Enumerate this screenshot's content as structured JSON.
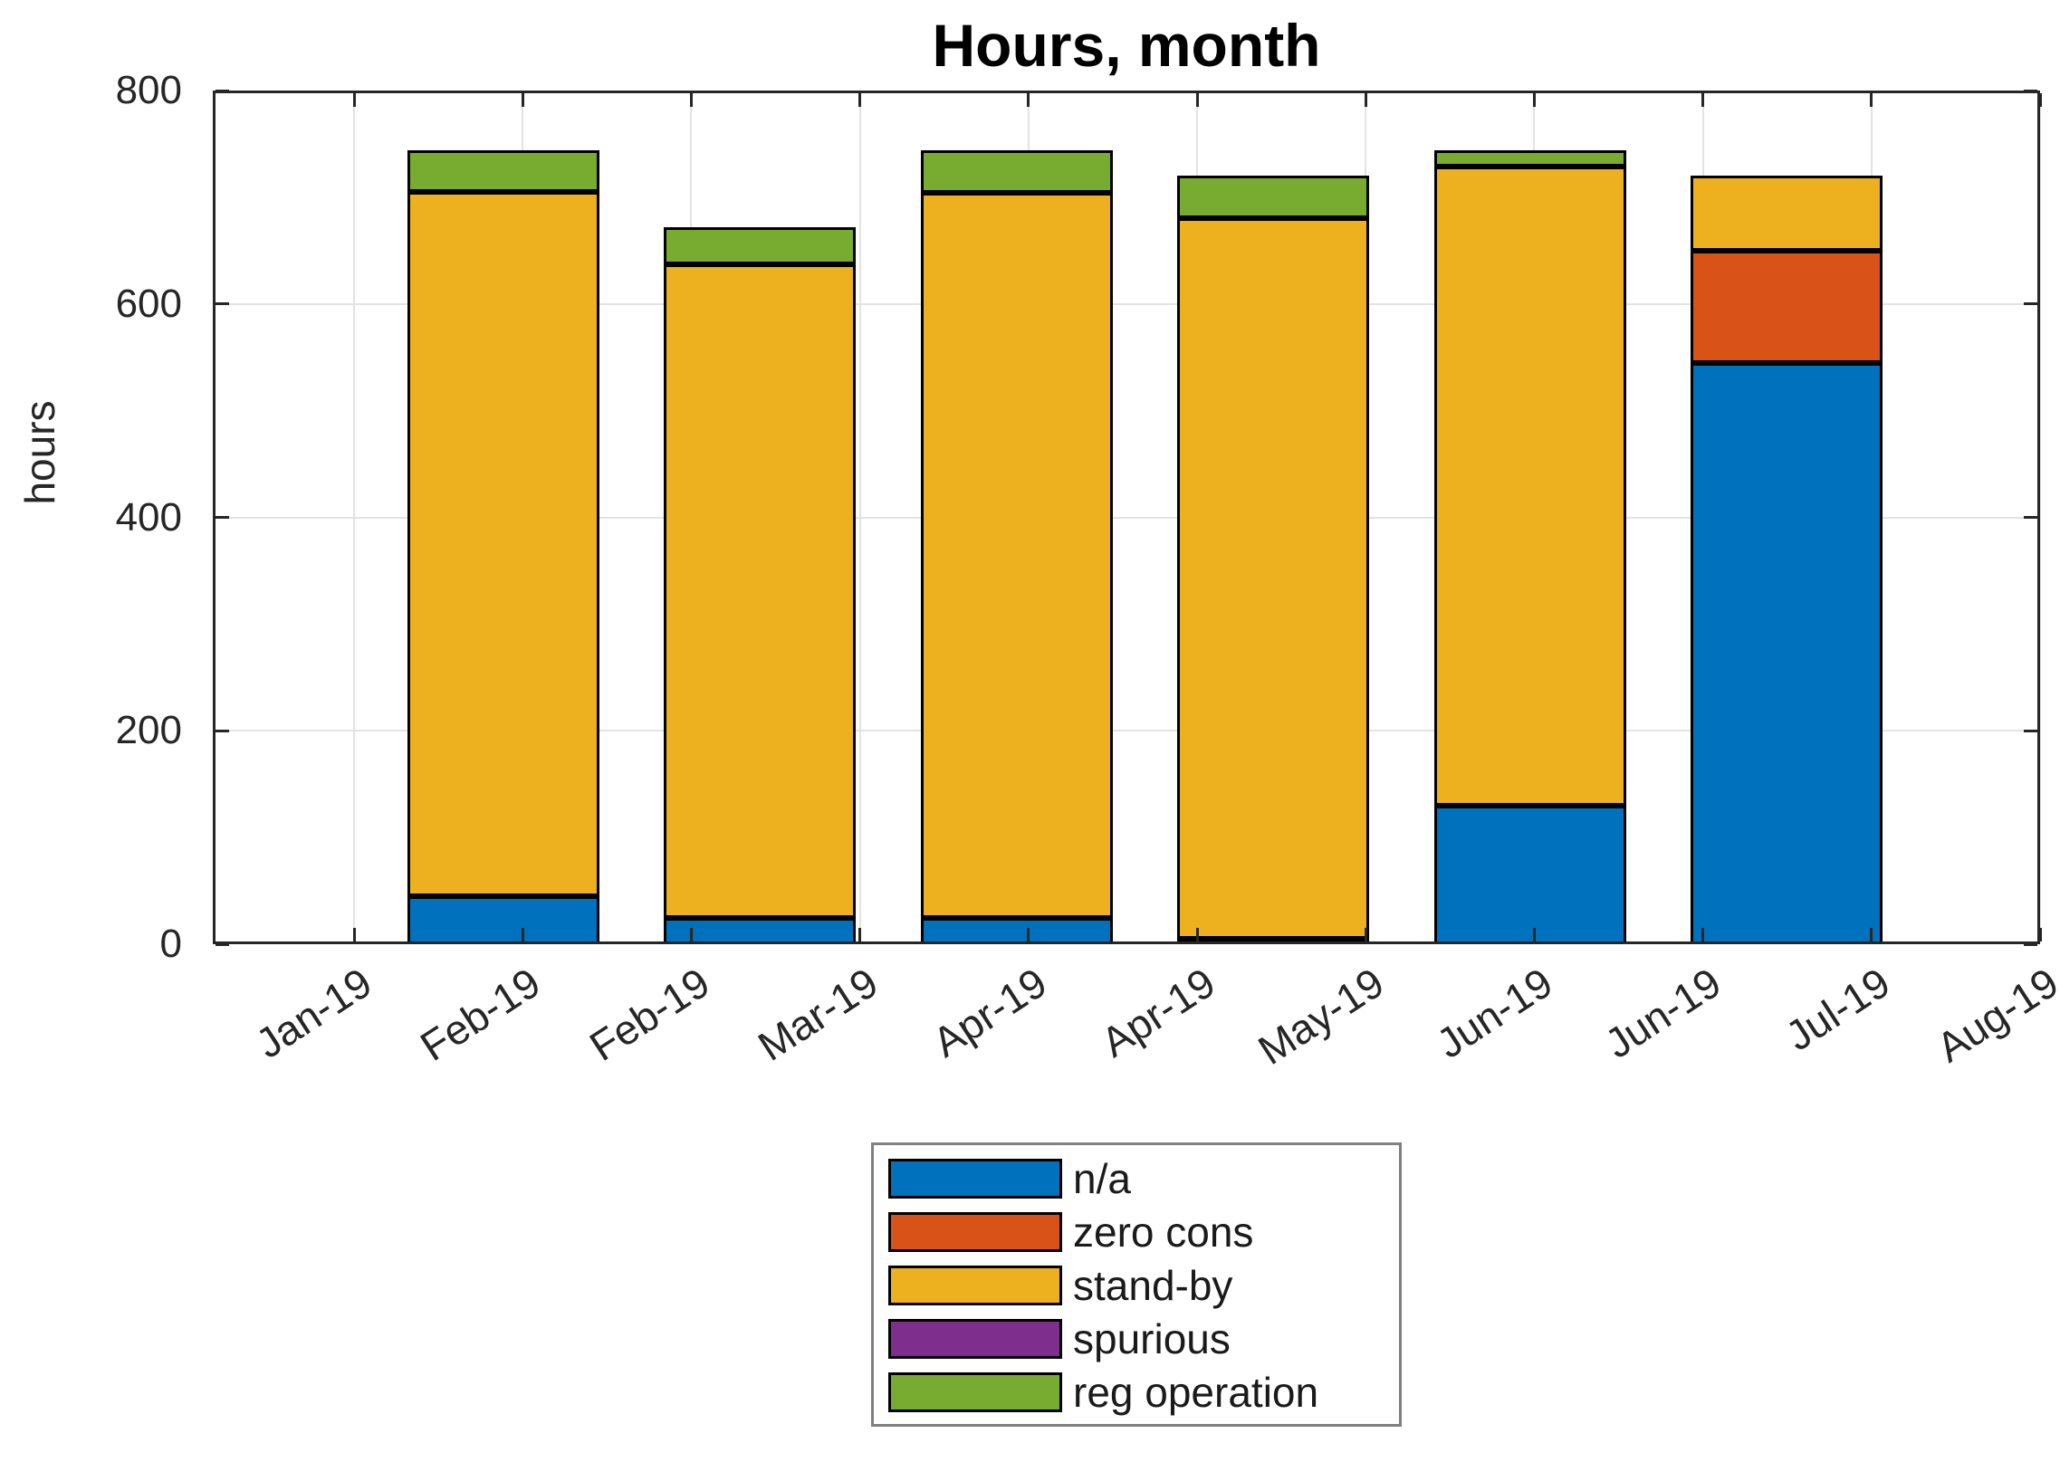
{
  "chart_data": {
    "type": "bar",
    "stacked": true,
    "title": "Hours, month",
    "ylabel": "hours",
    "xlabel": "",
    "ylim": [
      0,
      800
    ],
    "yticks": [
      0,
      200,
      400,
      600,
      800
    ],
    "x_tick_labels": [
      "Jan-19",
      "Feb-19",
      "Feb-19",
      "Mar-19",
      "Apr-19",
      "Apr-19",
      "May-19",
      "Jun-19",
      "Jun-19",
      "Jul-19",
      "Aug-19"
    ],
    "grid": true,
    "legend_position": "below-center",
    "bar_months": [
      "Jan-19",
      "Feb-19",
      "Mar-19",
      "Apr-19",
      "May-19",
      "Jun-19"
    ],
    "series": [
      {
        "name": "n/a",
        "color": "#0072BD",
        "values": [
          45,
          25,
          25,
          5,
          130,
          545
        ]
      },
      {
        "name": "zero cons",
        "color": "#D95319",
        "values": [
          0,
          0,
          0,
          0,
          0,
          105
        ]
      },
      {
        "name": "stand-by",
        "color": "#EDB120",
        "values": [
          660,
          612,
          679,
          675,
          599,
          70
        ]
      },
      {
        "name": "spurious",
        "color": "#7E2F8E",
        "values": [
          0,
          0,
          0,
          0,
          0,
          0
        ]
      },
      {
        "name": "reg operation",
        "color": "#77AC30",
        "values": [
          39,
          35,
          40,
          40,
          15,
          0
        ]
      }
    ],
    "bar_totals": [
      744,
      672,
      744,
      720,
      744,
      720
    ],
    "axis_color": "#262626",
    "grid_color": "#e3e3e3",
    "bar_edge_color": "#000000",
    "legend_border_color": "#7f7f7f"
  }
}
